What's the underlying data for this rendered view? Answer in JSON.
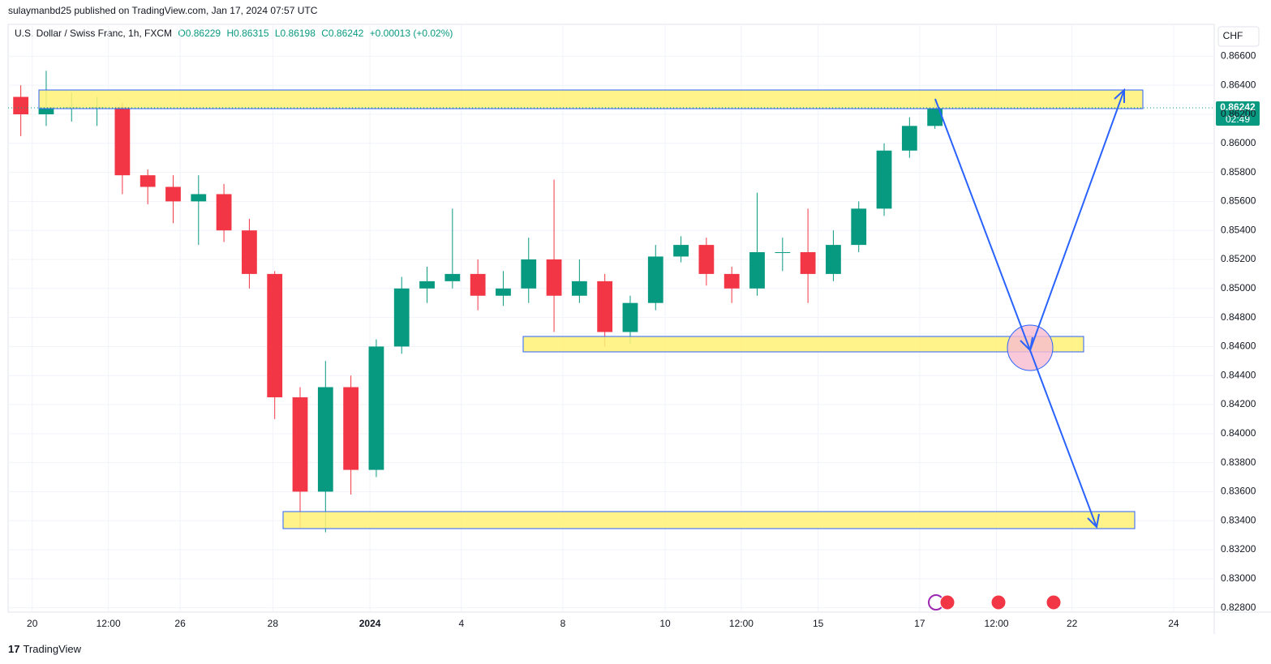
{
  "header": "sulaymanbd25 published on TradingView.com, Jan 17, 2024 07:57 UTC",
  "legend": {
    "symbol": "U.S. Dollar / Swiss Franc, 1h, FXCM",
    "open": "O0.86229",
    "high": "H0.86315",
    "low": "L0.86198",
    "close": "C0.86242",
    "change": "+0.00013 (+0.02%)"
  },
  "currency": "CHF",
  "last_price_label": "0.86242",
  "countdown": "02:49",
  "footer": "TradingView",
  "chart_data": {
    "type": "candlestick",
    "up_color": "#089981",
    "down_color": "#f23645",
    "grid": true,
    "x": [
      2,
      6,
      10,
      14,
      18,
      22,
      26,
      30,
      34,
      38,
      42,
      46,
      50,
      54,
      58,
      62,
      66,
      70,
      74,
      78,
      82,
      86,
      90,
      94,
      98,
      102,
      106,
      110,
      114,
      118,
      122,
      126,
      130,
      134,
      138,
      142,
      146
    ],
    "open": [
      0.8632,
      0.862,
      0.8625,
      0.8625,
      0.8625,
      0.8578,
      0.857,
      0.856,
      0.8565,
      0.854,
      0.851,
      0.8425,
      0.836,
      0.8432,
      0.8375,
      0.846,
      0.85,
      0.8505,
      0.851,
      0.8495,
      0.85,
      0.852,
      0.8495,
      0.8505,
      0.847,
      0.849,
      0.8522,
      0.853,
      0.851,
      0.85,
      0.8525,
      0.8525,
      0.851,
      0.853,
      0.8555,
      0.8595,
      0.8612
    ],
    "high": [
      0.864,
      0.865,
      0.8635,
      0.8632,
      0.8628,
      0.8582,
      0.8578,
      0.8578,
      0.8572,
      0.8548,
      0.8512,
      0.8432,
      0.845,
      0.844,
      0.8465,
      0.8508,
      0.8515,
      0.8555,
      0.852,
      0.8512,
      0.8535,
      0.8575,
      0.852,
      0.851,
      0.8495,
      0.853,
      0.8536,
      0.8535,
      0.8515,
      0.8566,
      0.8535,
      0.8555,
      0.854,
      0.856,
      0.86,
      0.8618,
      0.8631
    ],
    "low": [
      0.8605,
      0.8612,
      0.8615,
      0.8612,
      0.8565,
      0.8558,
      0.8545,
      0.853,
      0.8532,
      0.85,
      0.841,
      0.8335,
      0.8332,
      0.8358,
      0.837,
      0.8455,
      0.849,
      0.85,
      0.8485,
      0.8488,
      0.849,
      0.847,
      0.849,
      0.846,
      0.8462,
      0.8485,
      0.8518,
      0.8502,
      0.849,
      0.8495,
      0.8512,
      0.849,
      0.8505,
      0.8525,
      0.855,
      0.859,
      0.861
    ],
    "close": [
      0.862,
      0.8625,
      0.8625,
      0.8625,
      0.8578,
      0.857,
      0.856,
      0.8565,
      0.854,
      0.851,
      0.8425,
      0.836,
      0.8432,
      0.8375,
      0.846,
      0.85,
      0.8505,
      0.851,
      0.8495,
      0.85,
      0.852,
      0.8495,
      0.8505,
      0.847,
      0.849,
      0.8522,
      0.853,
      0.851,
      0.85,
      0.8525,
      0.8525,
      0.851,
      0.853,
      0.8555,
      0.8595,
      0.8612,
      0.8624
    ],
    "xlim": [
      0,
      190
    ],
    "xticks": [
      {
        "value": 3.8,
        "label": "20"
      },
      {
        "value": 15.8,
        "label": "12:00"
      },
      {
        "value": 27.1,
        "label": "26"
      },
      {
        "value": 41.7,
        "label": "28"
      },
      {
        "value": 57,
        "label": "2024"
      },
      {
        "value": 71.4,
        "label": "4"
      },
      {
        "value": 87.4,
        "label": "8"
      },
      {
        "value": 103.5,
        "label": "10"
      },
      {
        "value": 115.5,
        "label": "12:00"
      },
      {
        "value": 127.6,
        "label": "15"
      },
      {
        "value": 143.6,
        "label": "17"
      },
      {
        "value": 155.7,
        "label": "12:00"
      },
      {
        "value": 167.6,
        "label": "22"
      },
      {
        "value": 183.6,
        "label": "24"
      }
    ],
    "ylim": [
      0.8277,
      0.8682
    ],
    "yticks": [
      {
        "value": 0.828,
        "label": "0.82800"
      },
      {
        "value": 0.83,
        "label": "0.83000"
      },
      {
        "value": 0.832,
        "label": "0.83200"
      },
      {
        "value": 0.834,
        "label": "0.83400"
      },
      {
        "value": 0.836,
        "label": "0.83600"
      },
      {
        "value": 0.838,
        "label": "0.83800"
      },
      {
        "value": 0.84,
        "label": "0.84000"
      },
      {
        "value": 0.842,
        "label": "0.84200"
      },
      {
        "value": 0.844,
        "label": "0.84400"
      },
      {
        "value": 0.846,
        "label": "0.84600"
      },
      {
        "value": 0.848,
        "label": "0.84800"
      },
      {
        "value": 0.85,
        "label": "0.85000"
      },
      {
        "value": 0.852,
        "label": "0.85200"
      },
      {
        "value": 0.854,
        "label": "0.85400"
      },
      {
        "value": 0.856,
        "label": "0.85600"
      },
      {
        "value": 0.858,
        "label": "0.85800"
      },
      {
        "value": 0.86,
        "label": "0.86000"
      },
      {
        "value": 0.862,
        "label": "0.86200"
      },
      {
        "value": 0.864,
        "label": "0.86400"
      },
      {
        "value": 0.866,
        "label": "0.86600"
      }
    ]
  }
}
